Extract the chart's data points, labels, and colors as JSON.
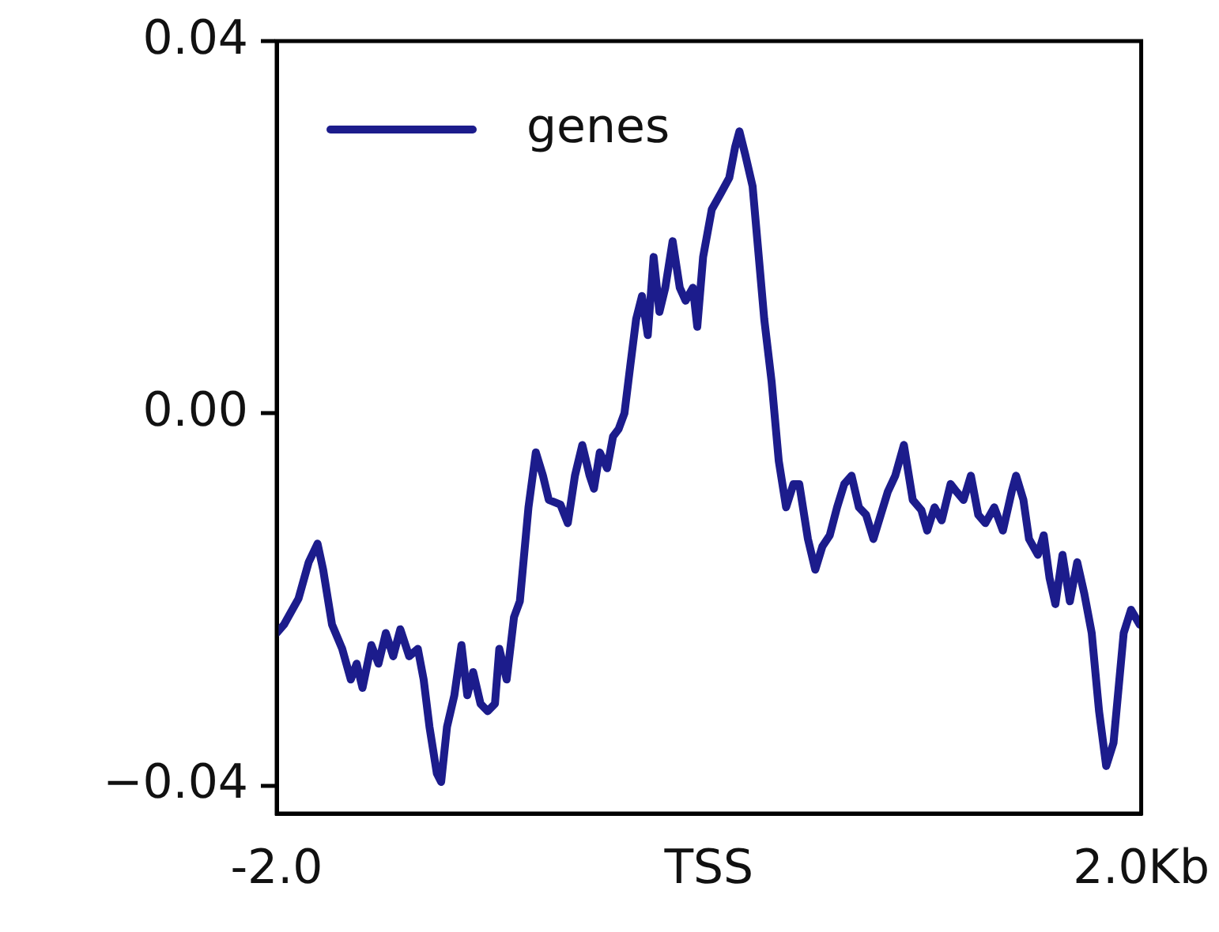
{
  "chart_data": {
    "type": "line",
    "x": [
      -2.0,
      -1.966,
      -1.899,
      -1.852,
      -1.811,
      -1.785,
      -1.744,
      -1.697,
      -1.657,
      -1.63,
      -1.603,
      -1.562,
      -1.529,
      -1.495,
      -1.461,
      -1.428,
      -1.387,
      -1.347,
      -1.32,
      -1.293,
      -1.259,
      -1.239,
      -1.212,
      -1.178,
      -1.145,
      -1.118,
      -1.091,
      -1.057,
      -1.024,
      -0.99,
      -0.97,
      -0.936,
      -0.902,
      -0.875,
      -0.835,
      -0.801,
      -0.768,
      -0.741,
      -0.687,
      -0.653,
      -0.62,
      -0.586,
      -0.552,
      -0.532,
      -0.505,
      -0.471,
      -0.444,
      -0.418,
      -0.391,
      -0.364,
      -0.337,
      -0.31,
      -0.283,
      -0.256,
      -0.229,
      -0.202,
      -0.168,
      -0.135,
      -0.108,
      -0.074,
      -0.054,
      -0.027,
      0.013,
      0.054,
      0.094,
      0.121,
      0.141,
      0.168,
      0.202,
      0.256,
      0.29,
      0.323,
      0.357,
      0.391,
      0.418,
      0.458,
      0.492,
      0.525,
      0.559,
      0.593,
      0.626,
      0.66,
      0.694,
      0.727,
      0.761,
      0.795,
      0.828,
      0.862,
      0.902,
      0.943,
      0.983,
      1.01,
      1.044,
      1.077,
      1.118,
      1.145,
      1.178,
      1.212,
      1.246,
      1.279,
      1.32,
      1.36,
      1.401,
      1.421,
      1.455,
      1.481,
      1.522,
      1.549,
      1.576,
      1.603,
      1.636,
      1.67,
      1.704,
      1.737,
      1.771,
      1.805,
      1.838,
      1.872,
      1.919,
      1.953,
      1.993
    ],
    "series": [
      {
        "name": "genes",
        "color": "#1c1c8c",
        "values": [
          -0.0236,
          -0.0227,
          -0.0199,
          -0.016,
          -0.014,
          -0.0168,
          -0.0227,
          -0.0253,
          -0.0286,
          -0.0269,
          -0.0295,
          -0.0249,
          -0.0269,
          -0.0236,
          -0.0261,
          -0.0232,
          -0.0261,
          -0.0253,
          -0.0286,
          -0.0337,
          -0.0387,
          -0.0396,
          -0.0337,
          -0.0303,
          -0.0249,
          -0.0303,
          -0.0278,
          -0.0312,
          -0.032,
          -0.0312,
          -0.0253,
          -0.0286,
          -0.0219,
          -0.0202,
          -0.0101,
          -0.0042,
          -0.0067,
          -0.0093,
          -0.0098,
          -0.0118,
          -0.0067,
          -0.0034,
          -0.0067,
          -0.0081,
          -0.0042,
          -0.0059,
          -0.0025,
          -0.0017,
          0.0,
          0.0051,
          0.0101,
          0.0126,
          0.0084,
          0.0168,
          0.0109,
          0.0135,
          0.0185,
          0.0135,
          0.0121,
          0.0135,
          0.0093,
          0.0168,
          0.0219,
          0.0236,
          0.0253,
          0.0286,
          0.0303,
          0.0278,
          0.0244,
          0.0101,
          0.0034,
          -0.0051,
          -0.0101,
          -0.0076,
          -0.0076,
          -0.0135,
          -0.0168,
          -0.0143,
          -0.0131,
          -0.0101,
          -0.0076,
          -0.0067,
          -0.0101,
          -0.0109,
          -0.0135,
          -0.0109,
          -0.0084,
          -0.0067,
          -0.0034,
          -0.0093,
          -0.0104,
          -0.0126,
          -0.0101,
          -0.0115,
          -0.0076,
          -0.0084,
          -0.0093,
          -0.0067,
          -0.0109,
          -0.0118,
          -0.0101,
          -0.0126,
          -0.0084,
          -0.0067,
          -0.0093,
          -0.0135,
          -0.0152,
          -0.0131,
          -0.0177,
          -0.0205,
          -0.0152,
          -0.0202,
          -0.016,
          -0.0194,
          -0.0236,
          -0.032,
          -0.0379,
          -0.0354,
          -0.0236,
          -0.0211,
          -0.0227
        ]
      }
    ],
    "xlim": [
      -2.0,
      2.0
    ],
    "xticks": [
      {
        "value": -2.0,
        "label": "-2.0"
      },
      {
        "value": 0,
        "label": "TSS"
      },
      {
        "value": 2.0,
        "label": "2.0Kb"
      }
    ],
    "ylim": [
      -0.043,
      0.04
    ],
    "yticks": [
      {
        "value": -0.04,
        "label": "−0.04"
      },
      {
        "value": 0,
        "label": "0.00"
      },
      {
        "value": 0.04,
        "label": "0.04"
      }
    ],
    "legend": "top left"
  }
}
